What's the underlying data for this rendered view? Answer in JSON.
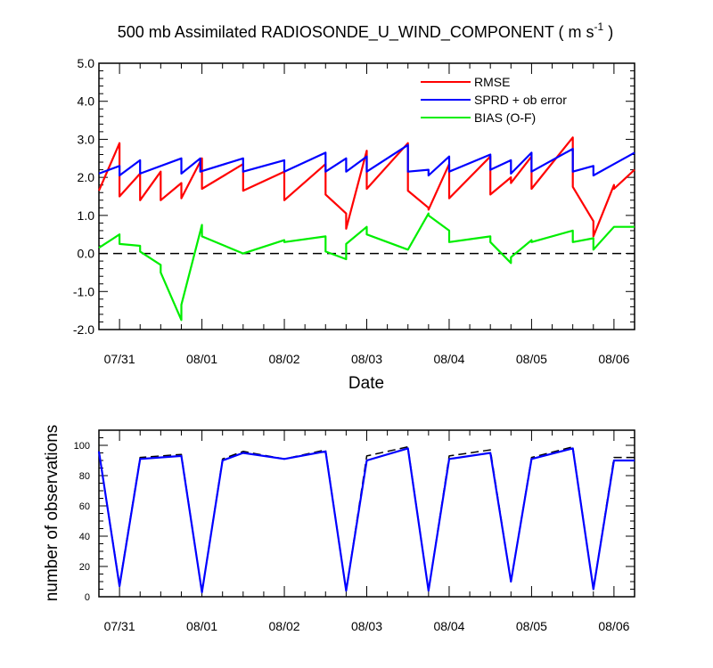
{
  "chart_data": [
    {
      "type": "line",
      "title": "500 mb Assimilated RADIOSONDE_U_WIND_COMPONENT ( m s",
      "title_unit_exponent": "-1",
      "title_close": " )",
      "xlabel": "Date",
      "ylabel": "",
      "xlim": [
        0.75,
        7.25
      ],
      "ylim": [
        -2.0,
        5.0
      ],
      "y_ticks": [
        "5.0",
        "4.0",
        "3.0",
        "2.0",
        "1.0",
        "0.0",
        "-1.0",
        "-2.0"
      ],
      "x_ticks": [
        "07/31",
        "08/01",
        "08/02",
        "08/03",
        "08/04",
        "08/05",
        "08/06"
      ],
      "reference_line": 0.0,
      "legend_position": "top-right",
      "series": [
        {
          "name": "RMSE",
          "color": "#ff0000",
          "x": [
            0.75,
            1.0,
            1.0,
            1.25,
            1.25,
            1.5,
            1.5,
            1.75,
            1.75,
            2.0,
            2.0,
            2.5,
            2.5,
            3.0,
            3.0,
            3.5,
            3.5,
            3.75,
            3.75,
            4.0,
            4.0,
            4.5,
            4.5,
            4.75,
            4.75,
            5.0,
            5.0,
            5.5,
            5.5,
            5.75,
            5.75,
            6.0,
            6.0,
            6.5,
            6.5,
            6.75,
            6.75,
            7.0,
            7.0,
            7.25
          ],
          "values": [
            1.65,
            2.9,
            1.5,
            2.1,
            1.4,
            2.15,
            1.4,
            1.85,
            1.45,
            2.5,
            1.7,
            2.35,
            1.65,
            2.15,
            1.4,
            2.35,
            1.55,
            1.05,
            0.65,
            2.7,
            1.7,
            2.9,
            1.65,
            1.2,
            1.15,
            2.35,
            1.45,
            2.55,
            1.55,
            2.0,
            1.85,
            2.55,
            1.7,
            3.05,
            1.75,
            0.85,
            0.45,
            1.8,
            1.7,
            2.2
          ]
        },
        {
          "name": "SPRD + ob error",
          "color": "#0000ff",
          "x": [
            0.75,
            1.0,
            1.0,
            1.25,
            1.25,
            1.75,
            1.75,
            1.98,
            1.98,
            2.5,
            2.5,
            3.0,
            3.0,
            3.5,
            3.5,
            3.75,
            3.75,
            4.0,
            4.0,
            4.5,
            4.5,
            4.75,
            4.75,
            5.0,
            5.0,
            5.5,
            5.5,
            5.75,
            5.75,
            6.0,
            6.0,
            6.5,
            6.5,
            6.75,
            6.75,
            7.0,
            7.0,
            7.25
          ],
          "values": [
            2.1,
            2.3,
            2.05,
            2.45,
            2.1,
            2.5,
            2.1,
            2.5,
            2.15,
            2.5,
            2.15,
            2.45,
            2.15,
            2.65,
            2.15,
            2.5,
            2.15,
            2.55,
            2.15,
            2.85,
            2.15,
            2.2,
            2.05,
            2.55,
            2.15,
            2.6,
            2.2,
            2.45,
            2.1,
            2.65,
            2.15,
            2.75,
            2.15,
            2.3,
            2.05,
            2.35,
            2.35,
            2.65
          ]
        },
        {
          "name": "BIAS (O-F)",
          "color": "#00ee00",
          "x": [
            0.75,
            1.0,
            1.0,
            1.25,
            1.25,
            1.5,
            1.5,
            1.75,
            1.75,
            2.0,
            2.0,
            2.5,
            2.5,
            3.0,
            3.0,
            3.5,
            3.5,
            3.75,
            3.75,
            4.0,
            4.0,
            4.5,
            4.5,
            4.75,
            4.75,
            5.0,
            5.0,
            5.5,
            5.5,
            5.75,
            5.75,
            6.0,
            6.0,
            6.5,
            6.5,
            6.75,
            6.75,
            7.0,
            7.0,
            7.25
          ],
          "values": [
            0.15,
            0.5,
            0.25,
            0.2,
            0.05,
            -0.3,
            -0.5,
            -1.75,
            -1.35,
            0.75,
            0.45,
            0.0,
            0.0,
            0.35,
            0.3,
            0.45,
            0.05,
            -0.15,
            0.25,
            0.7,
            0.5,
            0.1,
            0.1,
            1.05,
            1.0,
            0.6,
            0.3,
            0.45,
            0.3,
            -0.25,
            -0.1,
            0.35,
            0.3,
            0.6,
            0.3,
            0.4,
            0.1,
            0.7,
            0.7,
            0.7
          ]
        }
      ]
    },
    {
      "type": "line",
      "ylabel": "number of observations",
      "xlim": [
        0.75,
        7.25
      ],
      "ylim": [
        0,
        110
      ],
      "y_ticks": [
        "100",
        "80",
        "60",
        "40",
        "20",
        "0"
      ],
      "x_ticks": [
        "07/31",
        "08/01",
        "08/02",
        "08/03",
        "08/04",
        "08/05",
        "08/06"
      ],
      "series": [
        {
          "color": "#000000",
          "style": "dashed",
          "x": [
            0.75,
            1.0,
            1.25,
            1.75,
            2.0,
            2.25,
            2.5,
            3.0,
            3.5,
            3.75,
            4.0,
            4.5,
            4.75,
            5.0,
            5.5,
            5.75,
            6.0,
            6.5,
            6.75,
            7.0,
            7.25
          ],
          "values": [
            96,
            8,
            92,
            94,
            3,
            91,
            96,
            91,
            97,
            4,
            93,
            99,
            4,
            93,
            97,
            10,
            92,
            99,
            5,
            92,
            92
          ]
        },
        {
          "color": "#0000ff",
          "style": "solid",
          "x": [
            0.75,
            1.0,
            1.25,
            1.75,
            2.0,
            2.25,
            2.5,
            3.0,
            3.5,
            3.75,
            4.0,
            4.5,
            4.75,
            5.0,
            5.5,
            5.75,
            6.0,
            6.5,
            6.75,
            7.0,
            7.25
          ],
          "values": [
            96,
            7,
            91,
            93,
            3,
            90,
            95,
            91,
            96,
            4,
            90,
            98,
            4,
            91,
            95,
            10,
            91,
            98,
            5,
            90,
            90
          ]
        }
      ]
    }
  ]
}
